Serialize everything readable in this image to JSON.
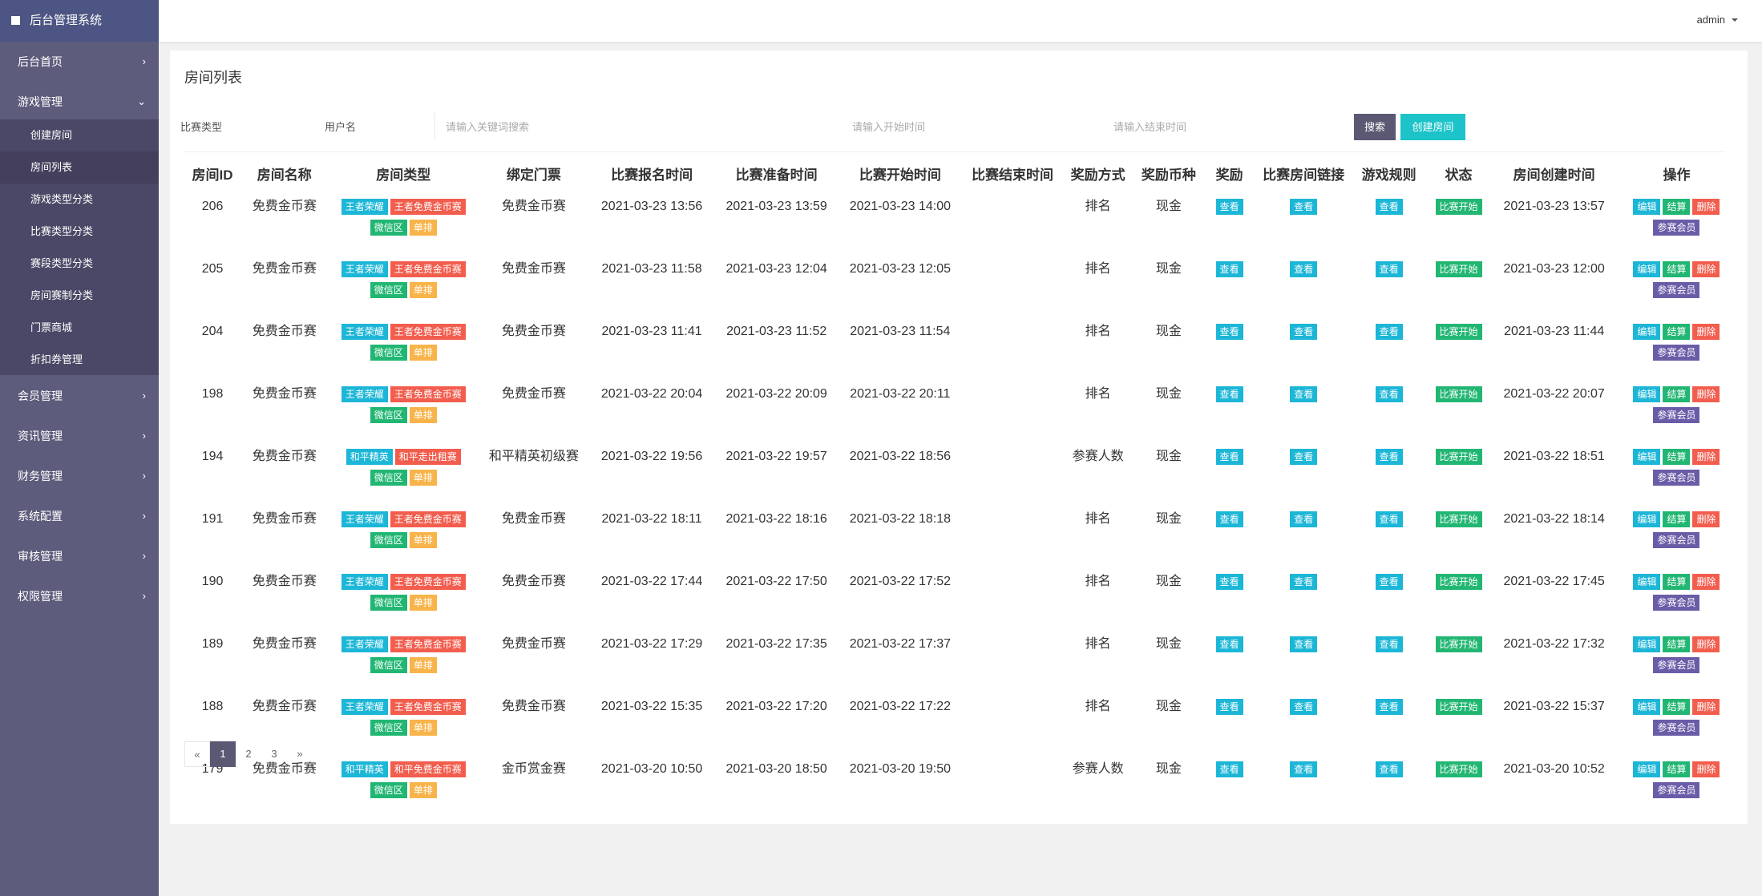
{
  "sidebar": {
    "brand": "后台管理系统",
    "menu": [
      {
        "label": "后台首页"
      },
      {
        "label": "游戏管理",
        "children": [
          "创建房间",
          "房间列表",
          "游戏类型分类",
          "比赛类型分类",
          "赛段类型分类",
          "房间赛制分类",
          "门票商城",
          "折扣券管理"
        ]
      },
      {
        "label": "会员管理"
      },
      {
        "label": "资讯管理"
      },
      {
        "label": "财务管理"
      },
      {
        "label": "系统配置"
      },
      {
        "label": "审核管理"
      },
      {
        "label": "权限管理"
      }
    ]
  },
  "header": {
    "user": "admin"
  },
  "page": {
    "title": "房间列表",
    "filters": {
      "match_type": "比赛类型",
      "username": "用户名",
      "keyword_placeholder": "请输入关键词搜索",
      "start_placeholder": "请输入开始时间",
      "end_placeholder": "请输入结束时间",
      "search_button": "搜索",
      "create_button": "创建房间"
    }
  },
  "table": {
    "columns": [
      "房间ID",
      "房间名称",
      "房间类型",
      "绑定门票",
      "比赛报名时间",
      "比赛准备时间",
      "比赛开始时间",
      "比赛结束时间",
      "奖励方式",
      "奖励币种",
      "奖励",
      "比赛房间链接",
      "游戏规则",
      "状态",
      "房间创建时间",
      "操作"
    ],
    "view_label": "查看",
    "actions": [
      "编辑",
      "结算",
      "删除",
      "参赛会员"
    ],
    "rows": [
      {
        "id": 206,
        "name": "免费金币赛",
        "tags": [
          "王者荣耀",
          "王者免费金币赛",
          "微信区",
          "单排"
        ],
        "ticket": "免费金币赛",
        "signup_time": "2021-03-23 13:56",
        "ready_time": "2021-03-23 13:59",
        "start_time": "2021-03-23 14:00",
        "reward_method": "排名",
        "currency": "现金",
        "status": "比赛开始",
        "created_time": "2021-03-23 13:57"
      },
      {
        "id": 205,
        "name": "免费金币赛",
        "tags": [
          "王者荣耀",
          "王者免费金币赛",
          "微信区",
          "单排"
        ],
        "ticket": "免费金币赛",
        "signup_time": "2021-03-23 11:58",
        "ready_time": "2021-03-23 12:04",
        "start_time": "2021-03-23 12:05",
        "reward_method": "排名",
        "currency": "现金",
        "status": "比赛开始",
        "created_time": "2021-03-23 12:00"
      },
      {
        "id": 204,
        "name": "免费金币赛",
        "tags": [
          "王者荣耀",
          "王者免费金币赛",
          "微信区",
          "单排"
        ],
        "ticket": "免费金币赛",
        "signup_time": "2021-03-23 11:41",
        "ready_time": "2021-03-23 11:52",
        "start_time": "2021-03-23 11:54",
        "reward_method": "排名",
        "currency": "现金",
        "status": "比赛开始",
        "created_time": "2021-03-23 11:44"
      },
      {
        "id": 198,
        "name": "免费金币赛",
        "tags": [
          "王者荣耀",
          "王者免费金币赛",
          "微信区",
          "单排"
        ],
        "ticket": "免费金币赛",
        "signup_time": "2021-03-22 20:04",
        "ready_time": "2021-03-22 20:09",
        "start_time": "2021-03-22 20:11",
        "reward_method": "排名",
        "currency": "现金",
        "status": "比赛开始",
        "created_time": "2021-03-22 20:07"
      },
      {
        "id": 194,
        "name": "免费金币赛",
        "tags": [
          "和平精英",
          "和平走出租赛",
          "微信区",
          "单排"
        ],
        "ticket": "和平精英初级赛",
        "signup_time": "2021-03-22 19:56",
        "ready_time": "2021-03-22 19:57",
        "start_time": "2021-03-22 18:56",
        "reward_method": "参赛人数",
        "currency": "现金",
        "status": "比赛开始",
        "created_time": "2021-03-22 18:51"
      },
      {
        "id": 191,
        "name": "免费金币赛",
        "tags": [
          "王者荣耀",
          "王者免费金币赛",
          "微信区",
          "单排"
        ],
        "ticket": "免费金币赛",
        "signup_time": "2021-03-22 18:11",
        "ready_time": "2021-03-22 18:16",
        "start_time": "2021-03-22 18:18",
        "reward_method": "排名",
        "currency": "现金",
        "status": "比赛开始",
        "created_time": "2021-03-22 18:14"
      },
      {
        "id": 190,
        "name": "免费金币赛",
        "tags": [
          "王者荣耀",
          "王者免费金币赛",
          "微信区",
          "单排"
        ],
        "ticket": "免费金币赛",
        "signup_time": "2021-03-22 17:44",
        "ready_time": "2021-03-22 17:50",
        "start_time": "2021-03-22 17:52",
        "reward_method": "排名",
        "currency": "现金",
        "status": "比赛开始",
        "created_time": "2021-03-22 17:45"
      },
      {
        "id": 189,
        "name": "免费金币赛",
        "tags": [
          "王者荣耀",
          "王者免费金币赛",
          "微信区",
          "单排"
        ],
        "ticket": "免费金币赛",
        "signup_time": "2021-03-22 17:29",
        "ready_time": "2021-03-22 17:35",
        "start_time": "2021-03-22 17:37",
        "reward_method": "排名",
        "currency": "现金",
        "status": "比赛开始",
        "created_time": "2021-03-22 17:32"
      },
      {
        "id": 188,
        "name": "免费金币赛",
        "tags": [
          "王者荣耀",
          "王者免费金币赛",
          "微信区",
          "单排"
        ],
        "ticket": "免费金币赛",
        "signup_time": "2021-03-22 15:35",
        "ready_time": "2021-03-22 17:20",
        "start_time": "2021-03-22 17:22",
        "reward_method": "排名",
        "currency": "现金",
        "status": "比赛开始",
        "created_time": "2021-03-22 15:37"
      },
      {
        "id": 179,
        "name": "免费金币赛",
        "tags": [
          "和平精英",
          "和平免费金币赛",
          "微信区",
          "单排"
        ],
        "ticket": "金币赏金赛",
        "signup_time": "2021-03-20 10:50",
        "ready_time": "2021-03-20 18:50",
        "start_time": "2021-03-20 19:50",
        "reward_method": "参赛人数",
        "currency": "现金",
        "status": "比赛开始",
        "created_time": "2021-03-20 10:52"
      }
    ]
  },
  "pagination": {
    "prev": "«",
    "pages": [
      1,
      2,
      3
    ],
    "current": 1,
    "next": "»"
  }
}
